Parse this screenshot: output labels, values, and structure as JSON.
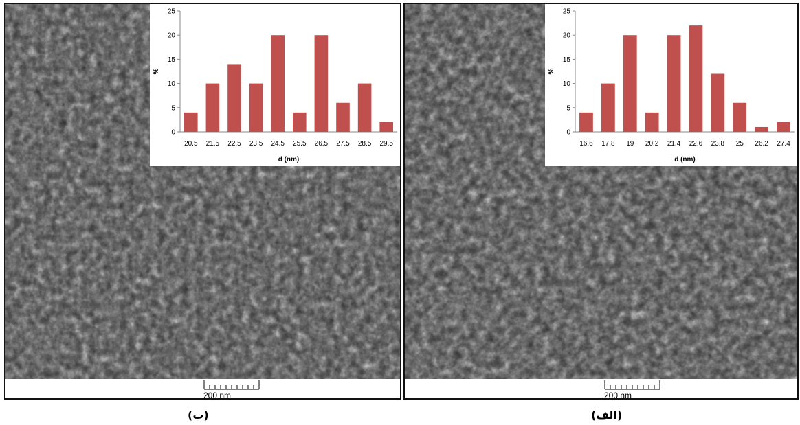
{
  "panels": [
    {
      "id": "left",
      "caption": "(ب)",
      "scale_label": "200 nm",
      "histogram": {
        "type": "bar",
        "categories": [
          "20.5",
          "21.5",
          "22.5",
          "23.5",
          "24.5",
          "25.5",
          "26.5",
          "27.5",
          "28.5",
          "29.5"
        ],
        "values": [
          4,
          10,
          14,
          10,
          20,
          4,
          20,
          6,
          10,
          2
        ],
        "xlabel": "d (nm)",
        "ylabel": "%",
        "ylim": [
          0,
          25
        ],
        "yticks": [
          "0",
          "5",
          "10",
          "15",
          "20",
          "25"
        ],
        "bar_color": "#c0504d"
      }
    },
    {
      "id": "right",
      "caption": "(الف)",
      "scale_label": "200 nm",
      "histogram": {
        "type": "bar",
        "categories": [
          "16.6",
          "17.8",
          "19",
          "20.2",
          "21.4",
          "22.6",
          "23.8",
          "25",
          "26.2",
          "27.4"
        ],
        "values": [
          4,
          10,
          20,
          4,
          20,
          22,
          12,
          6,
          1,
          2
        ],
        "xlabel": "d (nm)",
        "ylabel": "%",
        "ylim": [
          0,
          25
        ],
        "yticks": [
          "0",
          "5",
          "10",
          "15",
          "20",
          "25"
        ],
        "bar_color": "#c0504d"
      }
    }
  ],
  "chart_data": [
    {
      "type": "bar",
      "categories": [
        "20.5",
        "21.5",
        "22.5",
        "23.5",
        "24.5",
        "25.5",
        "26.5",
        "27.5",
        "28.5",
        "29.5"
      ],
      "values": [
        4,
        10,
        14,
        10,
        20,
        4,
        20,
        6,
        10,
        2
      ],
      "xlabel": "d (nm)",
      "ylabel": "%",
      "ylim": [
        0,
        25
      ]
    },
    {
      "type": "bar",
      "categories": [
        "16.6",
        "17.8",
        "19",
        "20.2",
        "21.4",
        "22.6",
        "23.8",
        "25",
        "26.2",
        "27.4"
      ],
      "values": [
        4,
        10,
        20,
        4,
        20,
        22,
        12,
        6,
        1,
        2
      ],
      "xlabel": "d (nm)",
      "ylabel": "%",
      "ylim": [
        0,
        25
      ]
    }
  ]
}
